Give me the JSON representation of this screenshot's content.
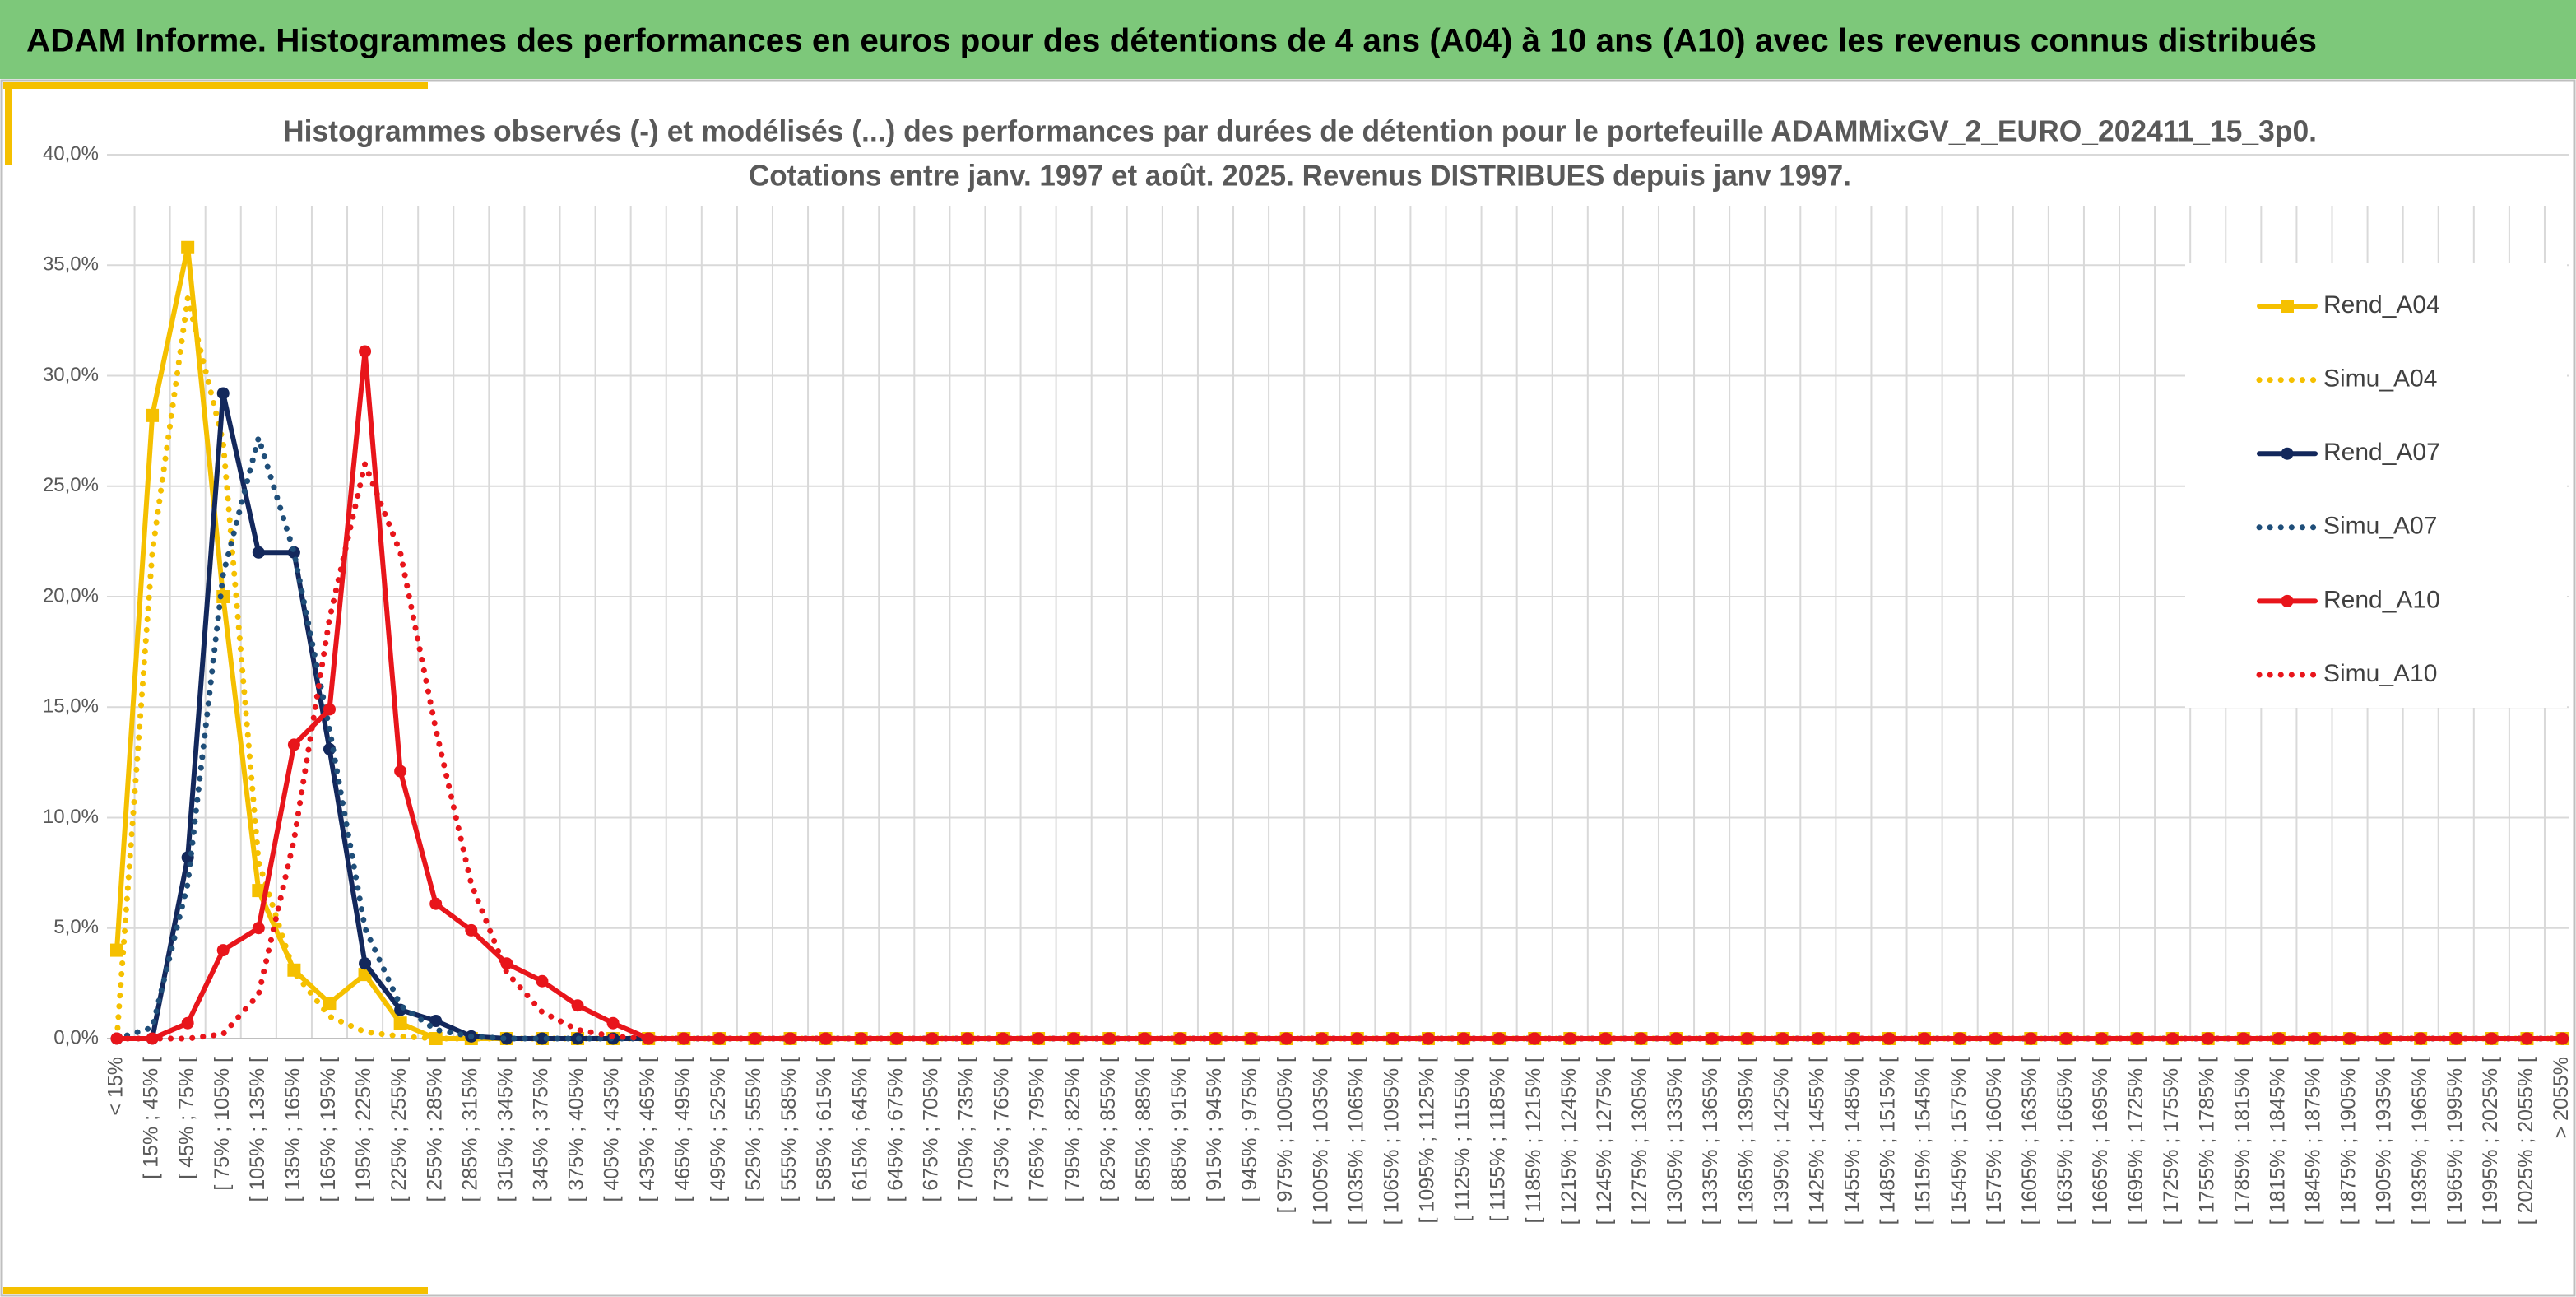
{
  "header": "ADAM Informe. Histogrammes des performances en euros pour des détentions de 4 ans (A04) à 10 ans (A10) avec les revenus connus distribués",
  "chart_data": {
    "type": "line",
    "title": "Histogrammes observés (-) et modélisés (...) des performances par durées de détention pour le portefeuille ADAMMixGV_2_EURO_202411_15_3p0.",
    "subtitle": "Cotations entre janv. 1997 et août. 2025. Revenus DISTRIBUES depuis janv 1997.",
    "categories": [
      "< 15%",
      "[ 15% ; 45% [",
      "[ 45% ; 75% [",
      "[ 75% ; 105% [",
      "[ 105% ; 135% [",
      "[ 135% ; 165% [",
      "[ 165% ; 195% [",
      "[ 195% ; 225% [",
      "[ 225% ; 255% [",
      "[ 255% ; 285% [",
      "[ 285% ; 315% [",
      "[ 315% ; 345% [",
      "[ 345% ; 375% [",
      "[ 375% ; 405% [",
      "[ 405% ; 435% [",
      "[ 435% ; 465% [",
      "[ 465% ; 495% [",
      "[ 495% ; 525% [",
      "[ 525% ; 555% [",
      "[ 555% ; 585% [",
      "[ 585% ; 615% [",
      "[ 615% ; 645% [",
      "[ 645% ; 675% [",
      "[ 675% ; 705% [",
      "[ 705% ; 735% [",
      "[ 735% ; 765% [",
      "[ 765% ; 795% [",
      "[ 795% ; 825% [",
      "[ 825% ; 855% [",
      "[ 855% ; 885% [",
      "[ 885% ; 915% [",
      "[ 915% ; 945% [",
      "[ 945% ; 975% [",
      "[ 975% ; 1005% [",
      "[ 1005% ; 1035% [",
      "[ 1035% ; 1065% [",
      "[ 1065% ; 1095% [",
      "[ 1095% ; 1125% [",
      "[ 1125% ; 1155% [",
      "[ 1155% ; 1185% [",
      "[ 1185% ; 1215% [",
      "[ 1215% ; 1245% [",
      "[ 1245% ; 1275% [",
      "[ 1275% ; 1305% [",
      "[ 1305% ; 1335% [",
      "[ 1335% ; 1365% [",
      "[ 1365% ; 1395% [",
      "[ 1395% ; 1425% [",
      "[ 1425% ; 1455% [",
      "[ 1455% ; 1485% [",
      "[ 1485% ; 1515% [",
      "[ 1515% ; 1545% [",
      "[ 1545% ; 1575% [",
      "[ 1575% ; 1605% [",
      "[ 1605% ; 1635% [",
      "[ 1635% ; 1665% [",
      "[ 1665% ; 1695% [",
      "[ 1695% ; 1725% [",
      "[ 1725% ; 1755% [",
      "[ 1755% ; 1785% [",
      "[ 1785% ; 1815% [",
      "[ 1815% ; 1845% [",
      "[ 1845% ; 1875% [",
      "[ 1875% ; 1905% [",
      "[ 1905% ; 1935% [",
      "[ 1935% ; 1965% [",
      "[ 1965% ; 1995% [",
      "[ 1995% ; 2025% [",
      "[ 2025% ; 2055% [",
      "> 2055%"
    ],
    "series": [
      {
        "name": "Rend_A04",
        "color": "#f5c000",
        "style": "solid",
        "marker": "square",
        "values": [
          4.0,
          28.2,
          35.8,
          20.0,
          6.7,
          3.1,
          1.6,
          2.9,
          0.7,
          0,
          0,
          0,
          0,
          0,
          0,
          0,
          0,
          0,
          0,
          0,
          0,
          0,
          0,
          0,
          0,
          0,
          0,
          0,
          0,
          0,
          0,
          0,
          0,
          0,
          0,
          0,
          0,
          0,
          0,
          0,
          0,
          0,
          0,
          0,
          0,
          0,
          0,
          0,
          0,
          0,
          0,
          0,
          0,
          0,
          0,
          0,
          0,
          0,
          0,
          0,
          0,
          0,
          0,
          0,
          0,
          0,
          0,
          0,
          0,
          0
        ]
      },
      {
        "name": "Simu_A04",
        "color": "#f5c000",
        "style": "dotted",
        "values": [
          0,
          22.0,
          33.5,
          27.0,
          8.0,
          3.0,
          1.0,
          0.3,
          0.1,
          0,
          0,
          0,
          0,
          0,
          0,
          0,
          0,
          0,
          0,
          0,
          0,
          0,
          0,
          0,
          0,
          0,
          0,
          0,
          0,
          0,
          0,
          0,
          0,
          0,
          0,
          0,
          0,
          0,
          0,
          0,
          0,
          0,
          0,
          0,
          0,
          0,
          0,
          0,
          0,
          0,
          0,
          0,
          0,
          0,
          0,
          0,
          0,
          0,
          0,
          0,
          0,
          0,
          0,
          0,
          0,
          0,
          0,
          0,
          0,
          0
        ]
      },
      {
        "name": "Rend_A07",
        "color": "#13285c",
        "style": "solid",
        "marker": "circle",
        "values": [
          0,
          0,
          8.2,
          29.2,
          22.0,
          22.0,
          13.1,
          3.4,
          1.3,
          0.8,
          0.1,
          0,
          0,
          0,
          0,
          0,
          0,
          0,
          0,
          0,
          0,
          0,
          0,
          0,
          0,
          0,
          0,
          0,
          0,
          0,
          0,
          0,
          0,
          0,
          0,
          0,
          0,
          0,
          0,
          0,
          0,
          0,
          0,
          0,
          0,
          0,
          0,
          0,
          0,
          0,
          0,
          0,
          0,
          0,
          0,
          0,
          0,
          0,
          0,
          0,
          0,
          0,
          0,
          0,
          0,
          0,
          0,
          0,
          0,
          0
        ]
      },
      {
        "name": "Simu_A07",
        "color": "#1f4e79",
        "style": "dotted",
        "values": [
          0,
          0.5,
          7.0,
          21.0,
          27.2,
          22.0,
          14.0,
          5.0,
          1.5,
          0.4,
          0.1,
          0,
          0,
          0,
          0,
          0,
          0,
          0,
          0,
          0,
          0,
          0,
          0,
          0,
          0,
          0,
          0,
          0,
          0,
          0,
          0,
          0,
          0,
          0,
          0,
          0,
          0,
          0,
          0,
          0,
          0,
          0,
          0,
          0,
          0,
          0,
          0,
          0,
          0,
          0,
          0,
          0,
          0,
          0,
          0,
          0,
          0,
          0,
          0,
          0,
          0,
          0,
          0,
          0,
          0,
          0,
          0,
          0,
          0,
          0
        ]
      },
      {
        "name": "Rend_A10",
        "color": "#e8151b",
        "style": "solid",
        "marker": "circle",
        "values": [
          0,
          0,
          0.7,
          4.0,
          5.0,
          13.3,
          14.9,
          31.1,
          12.1,
          6.1,
          4.9,
          3.4,
          2.6,
          1.5,
          0.7,
          0,
          0,
          0,
          0,
          0,
          0,
          0,
          0,
          0,
          0,
          0,
          0,
          0,
          0,
          0,
          0,
          0,
          0,
          0,
          0,
          0,
          0,
          0,
          0,
          0,
          0,
          0,
          0,
          0,
          0,
          0,
          0,
          0,
          0,
          0,
          0,
          0,
          0,
          0,
          0,
          0,
          0,
          0,
          0,
          0,
          0,
          0,
          0,
          0,
          0,
          0,
          0,
          0,
          0,
          0
        ]
      },
      {
        "name": "Simu_A10",
        "color": "#e8151b",
        "style": "dotted",
        "values": [
          0,
          0,
          0,
          0.2,
          2.0,
          9.0,
          19.0,
          26.0,
          22.0,
          14.0,
          7.0,
          3.0,
          1.2,
          0.4,
          0.1,
          0,
          0,
          0,
          0,
          0,
          0,
          0,
          0,
          0,
          0,
          0,
          0,
          0,
          0,
          0,
          0,
          0,
          0,
          0,
          0,
          0,
          0,
          0,
          0,
          0,
          0,
          0,
          0,
          0,
          0,
          0,
          0,
          0,
          0,
          0,
          0,
          0,
          0,
          0,
          0,
          0,
          0,
          0,
          0,
          0,
          0,
          0,
          0,
          0,
          0,
          0,
          0,
          0,
          0,
          0
        ]
      }
    ],
    "ylim": [
      0,
      40
    ],
    "yticks": [
      {
        "value": 0,
        "label": "0,0%"
      },
      {
        "value": 5,
        "label": "5,0%"
      },
      {
        "value": 10,
        "label": "10,0%"
      },
      {
        "value": 15,
        "label": "15,0%"
      },
      {
        "value": 20,
        "label": "20,0%"
      },
      {
        "value": 25,
        "label": "25,0%"
      },
      {
        "value": 30,
        "label": "30,0%"
      },
      {
        "value": 35,
        "label": "35,0%"
      },
      {
        "value": 40,
        "label": "40,0%"
      }
    ],
    "grid": true,
    "legend": "right"
  }
}
